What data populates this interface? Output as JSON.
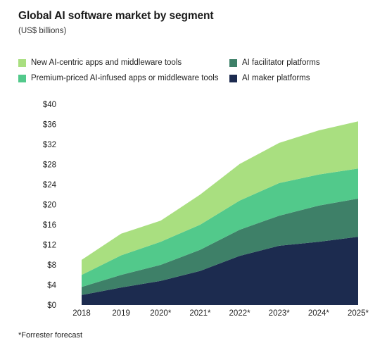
{
  "title": "Global AI software market by segment",
  "subtitle": "(US$ billions)",
  "footnote": "*Forrester forecast",
  "chart_data": {
    "type": "area",
    "stacked": true,
    "categories": [
      "2018",
      "2019",
      "2020*",
      "2021*",
      "2022*",
      "2023*",
      "2024*",
      "2025*"
    ],
    "y_ticks": [
      "$0",
      "$4",
      "$8",
      "$12",
      "$16",
      "$20",
      "$24",
      "$28",
      "$32",
      "$36",
      "$40"
    ],
    "ylim": [
      0,
      40
    ],
    "series": [
      {
        "name": "AI maker platforms",
        "color": "#1c2b4f",
        "values": [
          2.0,
          3.5,
          4.8,
          6.8,
          9.8,
          11.8,
          12.6,
          13.6
        ]
      },
      {
        "name": "AI facilitator platforms",
        "color": "#3e8068",
        "values": [
          1.6,
          2.5,
          3.2,
          4.2,
          5.2,
          6.0,
          7.2,
          7.6
        ]
      },
      {
        "name": "Premium-priced AI-infused apps or middleware tools",
        "color": "#52c98b",
        "values": [
          2.4,
          3.9,
          4.6,
          5.0,
          5.8,
          6.5,
          6.2,
          6.0
        ]
      },
      {
        "name": "New AI-centric apps and middleware tools",
        "color": "#a9df80",
        "values": [
          3.0,
          4.3,
          4.2,
          6.0,
          7.3,
          8.0,
          8.8,
          9.4
        ]
      }
    ],
    "legend": [
      {
        "label": "New AI-centric apps and middleware tools",
        "color": "#a9df80"
      },
      {
        "label": "AI facilitator platforms",
        "color": "#3e8068"
      },
      {
        "label": "Premium-priced AI-infused apps or middleware tools",
        "color": "#52c98b"
      },
      {
        "label": "AI maker platforms",
        "color": "#1c2b4f"
      }
    ],
    "grid": false,
    "legend_position": "top"
  }
}
